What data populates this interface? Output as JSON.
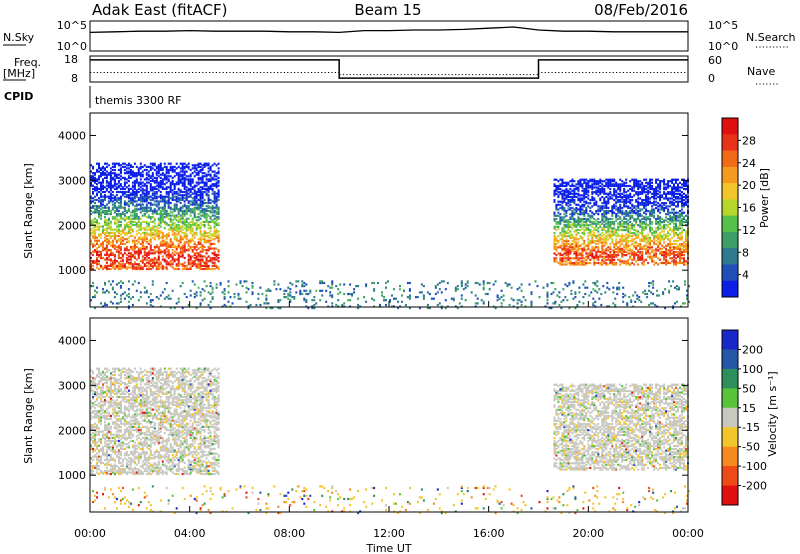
{
  "header": {
    "radar": "Adak East (fitACF)",
    "beam": "Beam 15",
    "date": "08/Feb/2016"
  },
  "noise_panel": {
    "left_label": "N.Sky",
    "left_ticks": [
      "10^5",
      "10^0"
    ],
    "right_label": "N.Search",
    "right_ticks": [
      "10^5",
      "10^0"
    ]
  },
  "freq_panel": {
    "left_label_1": "Freq.",
    "left_label_2": "[MHz]",
    "left_ticks": [
      "18",
      "8"
    ],
    "right_label": "Nave",
    "right_ticks": [
      "60",
      "0"
    ]
  },
  "cpid": {
    "label": "CPID",
    "text": "themis 3300 RF"
  },
  "x_axis": {
    "ticks": [
      "00:00",
      "04:00",
      "08:00",
      "12:00",
      "16:00",
      "20:00",
      "00:00"
    ],
    "label": "Time UT"
  },
  "power_panel": {
    "ylabel": "Slant Range [km]",
    "yticks": [
      "1000",
      "2000",
      "3000",
      "4000"
    ],
    "colorbar_label": "Power [dB]",
    "colorbar_ticks": [
      "4",
      "8",
      "12",
      "16",
      "20",
      "24",
      "28"
    ],
    "colors": [
      "#0b1ee6",
      "#1f4fb8",
      "#2e7a8f",
      "#3d9e67",
      "#56c24a",
      "#b6d62c",
      "#f2c52b",
      "#f59a1f",
      "#f06a17",
      "#e8321a",
      "#e01010"
    ]
  },
  "velocity_panel": {
    "ylabel": "Slant Range [km]",
    "yticks": [
      "1000",
      "2000",
      "3000",
      "4000"
    ],
    "colorbar_label": "Velocity [m s⁻¹]",
    "colorbar_ticks": [
      "200",
      "100",
      "50",
      "15",
      "-15",
      "-50",
      "-100",
      "-200"
    ],
    "colors": [
      "#1a27c8",
      "#2457a8",
      "#2f8f5a",
      "#59c43a",
      "#c8c8c0",
      "#f2c52b",
      "#f58a1f",
      "#ee4a18",
      "#e01010"
    ]
  },
  "chart_data": [
    {
      "type": "line",
      "title": "Adak East (fitACF)  Beam 15  08/Feb/2016",
      "x_range_hours": [
        0,
        24
      ],
      "series": [
        {
          "name": "N.Sky",
          "values_log10": [
            3.1,
            3.2,
            3.3,
            3.3,
            3.4,
            3.3,
            3.3,
            3.3,
            3.2,
            3.2,
            3.1,
            3.4,
            3.4,
            3.5,
            3.5,
            3.6,
            3.8,
            4.0,
            3.5,
            3.3,
            3.3,
            3.2,
            3.2,
            3.2,
            3.2
          ]
        },
        {
          "name": "N.Search",
          "values_log10": [
            0.3,
            0.3,
            0.3,
            0.3,
            0.3,
            0.3,
            0.3,
            0.3,
            0.3,
            0.3,
            0.3,
            0.3,
            0.3,
            0.3,
            0.3,
            0.3,
            0.3,
            0.3,
            0.3,
            0.3,
            0.3,
            0.3,
            0.3,
            0.3,
            0.3
          ]
        }
      ],
      "ylim_log10": [
        0,
        5
      ]
    },
    {
      "type": "line",
      "x_range_hours": [
        0,
        24
      ],
      "series": [
        {
          "name": "Freq.",
          "segments": [
            {
              "start": 0,
              "end": 10,
              "value": 16.5
            },
            {
              "start": 10,
              "end": 18,
              "value": 9.5
            },
            {
              "start": 18,
              "end": 24,
              "value": 16.5
            }
          ]
        },
        {
          "name": "Nave",
          "segments": [
            {
              "start": 0,
              "end": 10,
              "value": 22
            },
            {
              "start": 10,
              "end": 18,
              "value": 17
            },
            {
              "start": 18,
              "end": 24,
              "value": 22
            }
          ]
        }
      ],
      "ylim_freq": [
        8,
        18
      ],
      "ylim_nave": [
        0,
        60
      ]
    },
    {
      "type": "heatmap",
      "ylabel": "Slant Range [km]",
      "xlabel": "Time UT",
      "x_range_hours": [
        0,
        24
      ],
      "ylim": [
        180,
        4500
      ],
      "colorbar": {
        "label": "Power [dB]",
        "range": [
          0,
          30
        ]
      },
      "regions": [
        {
          "start": 0.0,
          "end": 5.2,
          "range_low": 1050,
          "range_high": 3400,
          "peak_range": 1300,
          "peak_value": 28
        },
        {
          "start": 18.6,
          "end": 24.0,
          "range_low": 1150,
          "range_high": 3050,
          "peak_range": 1350,
          "peak_value": 26
        },
        {
          "start": 0.0,
          "end": 24.0,
          "range_low": 180,
          "range_high": 800,
          "peak_range": 300,
          "peak_value": 6
        }
      ]
    },
    {
      "type": "heatmap",
      "ylabel": "Slant Range [km]",
      "xlabel": "Time UT",
      "x_range_hours": [
        0,
        24
      ],
      "ylim": [
        180,
        4500
      ],
      "colorbar": {
        "label": "Velocity [m s⁻¹]",
        "range": [
          -200,
          200
        ]
      },
      "regions": [
        {
          "start": 0.0,
          "end": 5.2,
          "range_low": 1050,
          "range_high": 3400,
          "dominant_value": 0
        },
        {
          "start": 18.6,
          "end": 24.0,
          "range_low": 1150,
          "range_high": 3050,
          "dominant_value": 0
        }
      ]
    }
  ]
}
